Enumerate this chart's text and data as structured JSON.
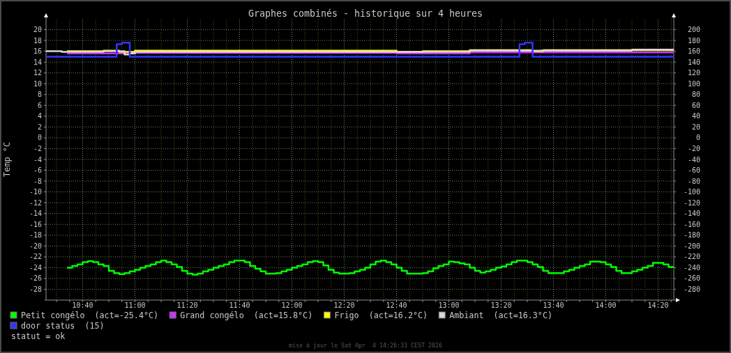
{
  "chart_data": {
    "type": "step",
    "title": "Graphes combinés - historique sur 4 heures",
    "ylabel": "Temp °C",
    "xlim": [
      "2026-04-04T10:26",
      "2026-04-04T14:26"
    ],
    "ylim": [
      -30,
      22
    ],
    "y2lim": [
      -300,
      220
    ],
    "yticks": [
      -28,
      -26,
      -24,
      -22,
      -20,
      -18,
      -16,
      -14,
      -12,
      -10,
      -8,
      -6,
      -4,
      -2,
      0,
      2,
      4,
      6,
      8,
      10,
      12,
      14,
      16,
      18,
      20
    ],
    "y2ticks": [
      -280,
      -260,
      -240,
      -220,
      -200,
      -180,
      -160,
      -140,
      -120,
      -100,
      -80,
      -60,
      -40,
      -20,
      0,
      20,
      40,
      60,
      80,
      100,
      120,
      140,
      160,
      180,
      200
    ],
    "xticks": [
      {
        "value": "2026-04-04T10:30",
        "label": null
      },
      {
        "value": "2026-04-04T10:35",
        "label": null
      },
      {
        "value": "2026-04-04T10:40",
        "label": "10:40"
      },
      {
        "value": "2026-04-04T10:45",
        "label": null
      },
      {
        "value": "2026-04-04T10:50",
        "label": null
      },
      {
        "value": "2026-04-04T10:55",
        "label": null
      },
      {
        "value": "2026-04-04T11:00",
        "label": "11:00"
      },
      {
        "value": "2026-04-04T11:05",
        "label": null
      },
      {
        "value": "2026-04-04T11:10",
        "label": null
      },
      {
        "value": "2026-04-04T11:15",
        "label": null
      },
      {
        "value": "2026-04-04T11:20",
        "label": "11:20"
      },
      {
        "value": "2026-04-04T11:25",
        "label": null
      },
      {
        "value": "2026-04-04T11:30",
        "label": null
      },
      {
        "value": "2026-04-04T11:35",
        "label": null
      },
      {
        "value": "2026-04-04T11:40",
        "label": "11:40"
      },
      {
        "value": "2026-04-04T11:45",
        "label": null
      },
      {
        "value": "2026-04-04T11:50",
        "label": null
      },
      {
        "value": "2026-04-04T11:55",
        "label": null
      },
      {
        "value": "2026-04-04T12:00",
        "label": "12:00"
      },
      {
        "value": "2026-04-04T12:05",
        "label": null
      },
      {
        "value": "2026-04-04T12:10",
        "label": null
      },
      {
        "value": "2026-04-04T12:15",
        "label": null
      },
      {
        "value": "2026-04-04T12:20",
        "label": "12:20"
      },
      {
        "value": "2026-04-04T12:25",
        "label": null
      },
      {
        "value": "2026-04-04T12:30",
        "label": null
      },
      {
        "value": "2026-04-04T12:35",
        "label": null
      },
      {
        "value": "2026-04-04T12:40",
        "label": "12:40"
      },
      {
        "value": "2026-04-04T12:45",
        "label": null
      },
      {
        "value": "2026-04-04T12:50",
        "label": null
      },
      {
        "value": "2026-04-04T12:55",
        "label": null
      },
      {
        "value": "2026-04-04T13:00",
        "label": "13:00"
      },
      {
        "value": "2026-04-04T13:05",
        "label": null
      },
      {
        "value": "2026-04-04T13:10",
        "label": null
      },
      {
        "value": "2026-04-04T13:15",
        "label": null
      },
      {
        "value": "2026-04-04T13:20",
        "label": "13:20"
      },
      {
        "value": "2026-04-04T13:25",
        "label": null
      },
      {
        "value": "2026-04-04T13:30",
        "label": null
      },
      {
        "value": "2026-04-04T13:35",
        "label": null
      },
      {
        "value": "2026-04-04T13:40",
        "label": "13:40"
      },
      {
        "value": "2026-04-04T13:45",
        "label": null
      },
      {
        "value": "2026-04-04T13:50",
        "label": null
      },
      {
        "value": "2026-04-04T13:55",
        "label": null
      },
      {
        "value": "2026-04-04T14:00",
        "label": "14:00"
      },
      {
        "value": "2026-04-04T14:05",
        "label": null
      },
      {
        "value": "2026-04-04T14:10",
        "label": null
      },
      {
        "value": "2026-04-04T14:15",
        "label": null
      },
      {
        "value": "2026-04-04T14:20",
        "label": "14:20"
      },
      {
        "value": "2026-04-04T14:25",
        "label": null
      }
    ],
    "grid": true,
    "legend": "bottom",
    "series": [
      {
        "name": "Petit congélo  (act=-25.4°C)",
        "color": "#00ff00",
        "x": [
          "2026-04-04T10:34",
          "2026-04-04T10:36",
          "2026-04-04T10:38",
          "2026-04-04T10:40",
          "2026-04-04T10:42",
          "2026-04-04T10:44",
          "2026-04-04T10:46",
          "2026-04-04T10:48",
          "2026-04-04T10:50",
          "2026-04-04T10:52",
          "2026-04-04T10:54",
          "2026-04-04T10:56",
          "2026-04-04T10:58",
          "2026-04-04T11:00",
          "2026-04-04T11:02",
          "2026-04-04T11:04",
          "2026-04-04T11:06",
          "2026-04-04T11:08",
          "2026-04-04T11:10",
          "2026-04-04T11:12",
          "2026-04-04T11:14",
          "2026-04-04T11:16",
          "2026-04-04T11:18",
          "2026-04-04T11:20",
          "2026-04-04T11:22",
          "2026-04-04T11:24",
          "2026-04-04T11:26",
          "2026-04-04T11:28",
          "2026-04-04T11:30",
          "2026-04-04T11:32",
          "2026-04-04T11:34",
          "2026-04-04T11:36",
          "2026-04-04T11:38",
          "2026-04-04T11:42",
          "2026-04-04T11:44",
          "2026-04-04T11:46",
          "2026-04-04T11:48",
          "2026-04-04T11:50",
          "2026-04-04T11:54",
          "2026-04-04T11:56",
          "2026-04-04T11:58",
          "2026-04-04T12:00",
          "2026-04-04T12:02",
          "2026-04-04T12:04",
          "2026-04-04T12:06",
          "2026-04-04T12:08",
          "2026-04-04T12:10",
          "2026-04-04T12:12",
          "2026-04-04T12:14",
          "2026-04-04T12:16",
          "2026-04-04T12:18",
          "2026-04-04T12:22",
          "2026-04-04T12:24",
          "2026-04-04T12:26",
          "2026-04-04T12:28",
          "2026-04-04T12:30",
          "2026-04-04T12:32",
          "2026-04-04T12:34",
          "2026-04-04T12:36",
          "2026-04-04T12:38",
          "2026-04-04T12:40",
          "2026-04-04T12:42",
          "2026-04-04T12:44",
          "2026-04-04T12:50",
          "2026-04-04T12:52",
          "2026-04-04T12:54",
          "2026-04-04T12:56",
          "2026-04-04T12:58",
          "2026-04-04T13:00",
          "2026-04-04T13:02",
          "2026-04-04T13:04",
          "2026-04-04T13:06",
          "2026-04-04T13:08",
          "2026-04-04T13:10",
          "2026-04-04T13:12",
          "2026-04-04T13:14",
          "2026-04-04T13:16",
          "2026-04-04T13:18",
          "2026-04-04T13:20",
          "2026-04-04T13:22",
          "2026-04-04T13:24",
          "2026-04-04T13:26",
          "2026-04-04T13:30",
          "2026-04-04T13:32",
          "2026-04-04T13:34",
          "2026-04-04T13:36",
          "2026-04-04T13:38",
          "2026-04-04T13:44",
          "2026-04-04T13:46",
          "2026-04-04T13:48",
          "2026-04-04T13:50",
          "2026-04-04T13:52",
          "2026-04-04T13:54",
          "2026-04-04T13:58",
          "2026-04-04T14:00",
          "2026-04-04T14:02",
          "2026-04-04T14:04",
          "2026-04-04T14:06",
          "2026-04-04T14:10",
          "2026-04-04T14:12",
          "2026-04-04T14:14",
          "2026-04-04T14:16",
          "2026-04-04T14:18",
          "2026-04-04T14:22",
          "2026-04-04T14:24",
          "2026-04-04T14:26"
        ],
        "values": [
          -24.0,
          -23.7,
          -23.4,
          -23.0,
          -22.8,
          -23.0,
          -23.4,
          -23.7,
          -24.6,
          -25.0,
          -25.2,
          -25.0,
          -24.7,
          -24.4,
          -24.0,
          -23.7,
          -23.4,
          -23.0,
          -22.7,
          -23.0,
          -23.4,
          -23.9,
          -24.6,
          -25.1,
          -25.3,
          -25.1,
          -24.7,
          -24.4,
          -24.0,
          -23.7,
          -23.4,
          -23.0,
          -22.7,
          -23.0,
          -23.7,
          -24.2,
          -24.7,
          -25.1,
          -25.0,
          -24.7,
          -24.4,
          -24.0,
          -23.7,
          -23.4,
          -23.0,
          -22.8,
          -23.0,
          -23.6,
          -24.4,
          -24.9,
          -25.1,
          -25.0,
          -24.7,
          -24.4,
          -24.0,
          -23.4,
          -22.9,
          -22.7,
          -23.0,
          -23.4,
          -24.0,
          -24.6,
          -25.1,
          -25.0,
          -24.7,
          -24.1,
          -23.7,
          -23.4,
          -22.9,
          -23.0,
          -23.2,
          -23.4,
          -24.0,
          -24.6,
          -24.9,
          -24.7,
          -24.4,
          -24.0,
          -23.8,
          -23.4,
          -23.0,
          -22.7,
          -23.0,
          -23.4,
          -23.9,
          -24.6,
          -25.0,
          -24.7,
          -24.4,
          -24.0,
          -23.7,
          -23.4,
          -22.9,
          -23.0,
          -23.4,
          -23.9,
          -24.6,
          -25.0,
          -24.7,
          -24.4,
          -24.0,
          -23.7,
          -23.1,
          -23.4,
          -23.9,
          -23.9
        ]
      },
      {
        "name": "Grand congélo  (act=15.8°C)",
        "color": "#cc33ff",
        "x": [
          "2026-04-04T10:34",
          "2026-04-04T11:00",
          "2026-04-04T12:40",
          "2026-04-04T13:08",
          "2026-04-04T14:26"
        ],
        "values": [
          15.6,
          15.7,
          15.6,
          15.8,
          15.8
        ]
      },
      {
        "name": "Frigo  (act=16.2°C)",
        "color": "#ffff00",
        "x": [
          "2026-04-04T10:34",
          "2026-04-04T10:48",
          "2026-04-04T10:54",
          "2026-04-04T11:00",
          "2026-04-04T12:40",
          "2026-04-04T12:50",
          "2026-04-04T13:08",
          "2026-04-04T13:32",
          "2026-04-04T13:36",
          "2026-04-04T14:26"
        ],
        "values": [
          16.0,
          16.1,
          15.9,
          16.1,
          15.9,
          16.0,
          16.2,
          16.0,
          16.2,
          16.2
        ]
      },
      {
        "name": "Ambiant  (act=16.3°C)",
        "color": "#d8d8d8",
        "x": [
          "2026-04-04T10:26",
          "2026-04-04T10:32",
          "2026-04-04T10:48",
          "2026-04-04T10:56",
          "2026-04-04T10:58",
          "2026-04-04T11:00",
          "2026-04-04T13:08",
          "2026-04-04T14:10",
          "2026-04-04T14:26"
        ],
        "values": [
          16.0,
          15.9,
          16.0,
          15.4,
          15.6,
          15.9,
          16.1,
          16.3,
          16.3
        ]
      },
      {
        "name": "door status  (15)",
        "color": "#3333ff",
        "x": [
          "2026-04-04T10:26",
          "2026-04-04T10:53",
          "2026-04-04T10:55",
          "2026-04-04T10:58",
          "2026-04-04T13:27",
          "2026-04-04T13:29",
          "2026-04-04T13:32",
          "2026-04-04T14:26"
        ],
        "values": [
          15.0,
          17.3,
          17.6,
          15.0,
          17.3,
          17.6,
          15.0,
          15.0
        ]
      }
    ],
    "annotations": [
      "statut = ok",
      "mise à jour le Sat Apr  4 14:26:33 CEST 2026"
    ]
  }
}
